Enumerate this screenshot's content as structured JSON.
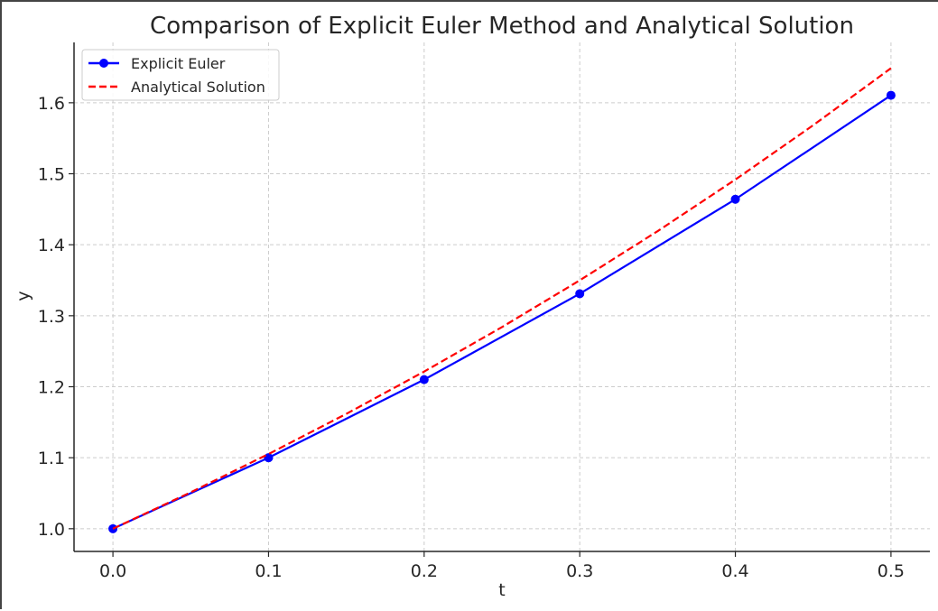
{
  "chart_data": {
    "type": "line",
    "title": "Comparison of Explicit Euler Method and Analytical Solution",
    "xlabel": "t",
    "ylabel": "y",
    "xlim": [
      -0.025,
      0.525
    ],
    "ylim": [
      0.968,
      1.685
    ],
    "x_ticks": [
      0.0,
      0.1,
      0.2,
      0.3,
      0.4,
      0.5
    ],
    "x_tick_labels": [
      "0.0",
      "0.1",
      "0.2",
      "0.3",
      "0.4",
      "0.5"
    ],
    "y_ticks": [
      1.0,
      1.1,
      1.2,
      1.3,
      1.4,
      1.5,
      1.6
    ],
    "y_tick_labels": [
      "1.0",
      "1.1",
      "1.2",
      "1.3",
      "1.4",
      "1.5",
      "1.6"
    ],
    "grid": true,
    "legend_position": "top-left",
    "series": [
      {
        "name": "Explicit Euler",
        "color": "#0000ff",
        "style": "solid",
        "marker": "circle",
        "x": [
          0.0,
          0.1,
          0.2,
          0.3,
          0.4,
          0.5
        ],
        "y": [
          1.0,
          1.1,
          1.21,
          1.331,
          1.4641,
          1.61051
        ]
      },
      {
        "name": "Analytical Solution",
        "color": "#ff0000",
        "style": "dashed",
        "marker": "none",
        "x": [
          0.0,
          0.05,
          0.1,
          0.15,
          0.2,
          0.25,
          0.3,
          0.35,
          0.4,
          0.45,
          0.5
        ],
        "y": [
          1.0,
          1.0513,
          1.1052,
          1.1618,
          1.2214,
          1.284,
          1.3499,
          1.4191,
          1.4918,
          1.5683,
          1.6487
        ]
      }
    ]
  }
}
